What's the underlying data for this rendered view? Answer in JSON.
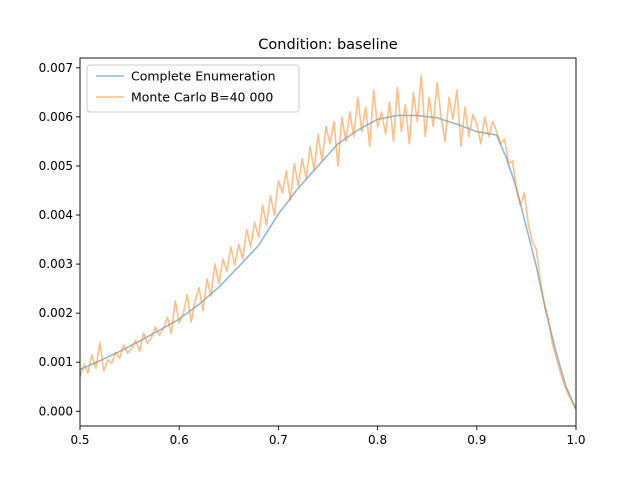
{
  "chart_data": {
    "type": "line",
    "title": "Condition: baseline",
    "xlabel": "",
    "ylabel": "",
    "xlim": [
      0.5,
      1.0
    ],
    "ylim": [
      -0.0003,
      0.0072
    ],
    "x_ticks": [
      0.5,
      0.6,
      0.7,
      0.8,
      0.9,
      1.0
    ],
    "x_tick_labels": [
      "0.5",
      "0.6",
      "0.7",
      "0.8",
      "0.9",
      "1.0"
    ],
    "y_ticks": [
      0.0,
      0.001,
      0.002,
      0.003,
      0.004,
      0.005,
      0.006,
      0.007
    ],
    "y_tick_labels": [
      "0.000",
      "0.001",
      "0.002",
      "0.003",
      "0.004",
      "0.005",
      "0.006",
      "0.007"
    ],
    "grid": false,
    "legend_position": "top-left",
    "series": [
      {
        "name": "Complete Enumeration",
        "color": "#1f77b4",
        "opacity": 0.5,
        "x": [
          0.5,
          0.52,
          0.54,
          0.56,
          0.58,
          0.6,
          0.62,
          0.64,
          0.66,
          0.68,
          0.7,
          0.72,
          0.74,
          0.76,
          0.78,
          0.8,
          0.82,
          0.84,
          0.86,
          0.88,
          0.9,
          0.92,
          0.93,
          0.94,
          0.95,
          0.96,
          0.97,
          0.98,
          0.99,
          1.0
        ],
        "y": [
          0.00085,
          0.00103,
          0.00122,
          0.00143,
          0.00165,
          0.00188,
          0.00218,
          0.00253,
          0.00295,
          0.00338,
          0.00402,
          0.00455,
          0.005,
          0.00545,
          0.00573,
          0.00595,
          0.00603,
          0.00603,
          0.00598,
          0.00585,
          0.0057,
          0.00563,
          0.00515,
          0.00455,
          0.00375,
          0.00295,
          0.002,
          0.0012,
          0.0005,
          4e-05
        ]
      },
      {
        "name": "Monte Carlo B=40 000",
        "color": "#ff7f0e",
        "opacity": 0.5,
        "x": [
          0.5,
          0.504,
          0.508,
          0.512,
          0.516,
          0.52,
          0.524,
          0.528,
          0.532,
          0.536,
          0.54,
          0.544,
          0.548,
          0.552,
          0.556,
          0.56,
          0.564,
          0.568,
          0.572,
          0.576,
          0.58,
          0.584,
          0.588,
          0.592,
          0.596,
          0.6,
          0.604,
          0.608,
          0.612,
          0.616,
          0.62,
          0.624,
          0.628,
          0.632,
          0.636,
          0.64,
          0.644,
          0.648,
          0.652,
          0.656,
          0.66,
          0.664,
          0.668,
          0.672,
          0.676,
          0.68,
          0.684,
          0.688,
          0.692,
          0.696,
          0.7,
          0.704,
          0.708,
          0.712,
          0.716,
          0.72,
          0.724,
          0.728,
          0.732,
          0.736,
          0.74,
          0.744,
          0.748,
          0.752,
          0.756,
          0.76,
          0.764,
          0.768,
          0.772,
          0.776,
          0.78,
          0.784,
          0.788,
          0.792,
          0.796,
          0.8,
          0.804,
          0.808,
          0.812,
          0.816,
          0.82,
          0.824,
          0.828,
          0.832,
          0.836,
          0.84,
          0.844,
          0.848,
          0.852,
          0.856,
          0.86,
          0.864,
          0.868,
          0.872,
          0.876,
          0.88,
          0.884,
          0.888,
          0.892,
          0.896,
          0.9,
          0.904,
          0.908,
          0.912,
          0.916,
          0.92,
          0.924,
          0.928,
          0.932,
          0.936,
          0.94,
          0.944,
          0.948,
          0.952,
          0.956,
          0.96,
          0.964,
          0.968,
          0.972,
          0.976,
          0.98,
          0.984,
          0.988,
          0.992,
          0.996,
          1.0
        ],
        "y": [
          0.0007,
          0.00095,
          0.00078,
          0.00115,
          0.00088,
          0.0014,
          0.00082,
          0.00105,
          0.00098,
          0.0012,
          0.00108,
          0.00135,
          0.00118,
          0.00128,
          0.00145,
          0.00122,
          0.0016,
          0.00138,
          0.0015,
          0.00172,
          0.00155,
          0.00168,
          0.00192,
          0.00158,
          0.00225,
          0.0018,
          0.00198,
          0.00238,
          0.00182,
          0.00225,
          0.00252,
          0.00205,
          0.0027,
          0.00235,
          0.003,
          0.0026,
          0.0031,
          0.00285,
          0.00335,
          0.00298,
          0.0034,
          0.0031,
          0.0037,
          0.00335,
          0.00385,
          0.00355,
          0.0042,
          0.0038,
          0.0044,
          0.004,
          0.0047,
          0.00445,
          0.0049,
          0.0043,
          0.00505,
          0.0046,
          0.00515,
          0.00475,
          0.0054,
          0.0049,
          0.00565,
          0.0051,
          0.0058,
          0.00545,
          0.0059,
          0.005,
          0.006,
          0.0055,
          0.0061,
          0.0056,
          0.0064,
          0.0057,
          0.0062,
          0.0054,
          0.00655,
          0.0058,
          0.0061,
          0.00565,
          0.0063,
          0.0055,
          0.0066,
          0.0057,
          0.00625,
          0.00545,
          0.0065,
          0.0059,
          0.00685,
          0.0056,
          0.0064,
          0.0058,
          0.0067,
          0.006,
          0.0055,
          0.0064,
          0.00595,
          0.00655,
          0.0054,
          0.0062,
          0.0056,
          0.00605,
          0.00585,
          0.00545,
          0.006,
          0.0056,
          0.0059,
          0.0057,
          0.00545,
          0.00555,
          0.00505,
          0.0051,
          0.0045,
          0.0042,
          0.00445,
          0.0038,
          0.00345,
          0.0033,
          0.00265,
          0.0022,
          0.0019,
          0.0014,
          0.0011,
          0.0008,
          0.00055,
          0.00035,
          0.0002,
          4e-05
        ]
      }
    ]
  }
}
